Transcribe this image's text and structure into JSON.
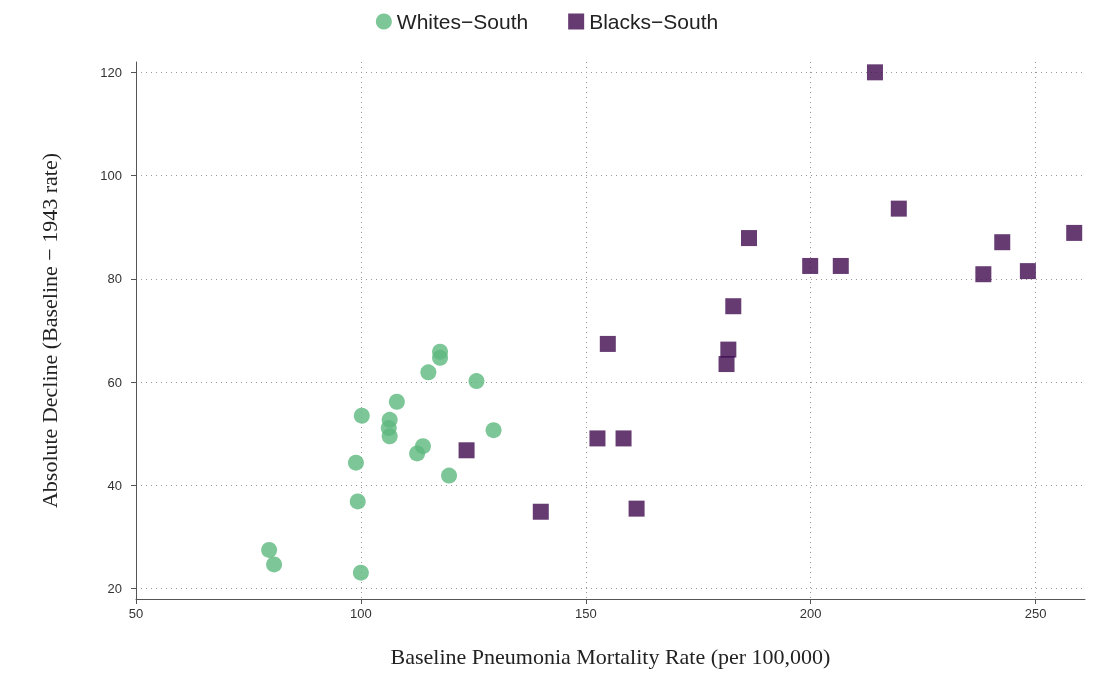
{
  "chart_data": {
    "type": "scatter",
    "xlabel": "Baseline Pneumonia Mortality Rate (per 100,000)",
    "ylabel": "Absolute Decline (Baseline − 1943 rate)",
    "xlim": [
      50,
      261
    ],
    "xticks": [
      50,
      100,
      150,
      200,
      250
    ],
    "ylim": [
      18,
      122
    ],
    "yticks": [
      20,
      40,
      60,
      80,
      100,
      120
    ],
    "grid": true,
    "legend": "top",
    "series": [
      {
        "name": "Whites−South",
        "color": "#5cb87e",
        "marker": "circle",
        "x": [
          79.6,
          80.7,
          100,
          99.3,
          98.9,
          100.2,
          106.4,
          106.2,
          106.4,
          108,
          112.5,
          113.8,
          119.6,
          115,
          117.6,
          117.6,
          125.7,
          129.5
        ],
        "values": [
          27.5,
          24.7,
          23.1,
          36.9,
          44.4,
          53.5,
          52.7,
          51.1,
          49.5,
          56.2,
          46.2,
          47.6,
          41.9,
          61.9,
          64.7,
          65.9,
          60.2,
          50.7
        ]
      },
      {
        "name": "Blacks−South",
        "color": "#3e0a4f",
        "marker": "square",
        "x": [
          123.5,
          140,
          152.6,
          158.4,
          161.3,
          154.9,
          181.7,
          181.3,
          182.8,
          186.3,
          199.9,
          206.7,
          214.3,
          219.6,
          238.4,
          242.6,
          248.3,
          258.6
        ],
        "values": [
          46.8,
          34.9,
          49.1,
          49.1,
          35.5,
          67.4,
          66.3,
          63.5,
          74.7,
          87.9,
          82.5,
          82.5,
          120,
          93.6,
          80.9,
          87.1,
          81.5,
          88.9
        ]
      }
    ]
  }
}
